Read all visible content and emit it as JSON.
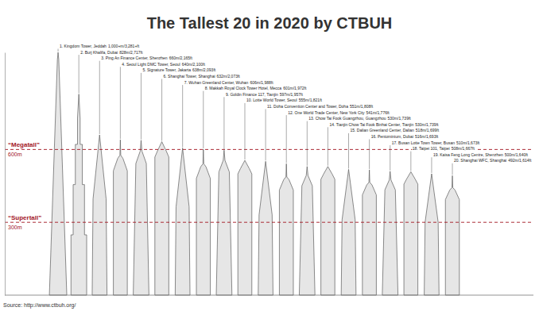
{
  "chart_data": {
    "type": "bar",
    "title": "The Tallest 20 in 2020 by CTBUH",
    "categories": [
      "1. Kingdom Tower, Jeddah",
      "2. Burj Khalifa, Dubai",
      "3. Ping An Finance Center, Shenzhen",
      "4. Seoul Light DMC Tower, Seoul",
      "5. Signature Tower, Jakarta",
      "6. Shanghai Tower, Shanghai",
      "7. Wuhan Greenland Center, Wuhan",
      "8. Makkah Royal Clock Tower Hotel, Mecca",
      "9. Goldin Finance 117, Tianjin",
      "10. Lotte World Tower, Seoul",
      "11. Doha Convention Center and Tower, Doha",
      "12. One World Trade Center, New York City",
      "13. Chow Tai Fook Guangzhou, Guangzhou",
      "14. Tianjin Chow Tai Fook Binhai Center, Tianjin",
      "15. Dalian Greenland Center, Dalian",
      "16. Pentominium, Dubai",
      "17. Busan Lotte Town Tower, Busan",
      "18. Taipei 101, Taipei",
      "19. Kaisa Feng Long Centre, Shenzhen",
      "20. Shanghai WFC, Shanghai"
    ],
    "values": [
      1000,
      828,
      660,
      640,
      638,
      632,
      606,
      601,
      597,
      555,
      551,
      541,
      530,
      530,
      518,
      516,
      510,
      508,
      500,
      492
    ],
    "value_labels": [
      "1,000+m/3,281+ft",
      "828m/2,717ft",
      "660m/2,165ft",
      "640m/2,100ft",
      "638m/2,093ft",
      "632m/2,073ft",
      "606m/1,988ft",
      "601m/1,972ft",
      "597m/1,957ft",
      "555m/1,821ft",
      "551m/1,808ft",
      "541m/1,776ft",
      "530m/1,739ft",
      "530m/1,739ft",
      "518m/1,699ft",
      "516m/1,693ft",
      "510m/1,673ft",
      "508m/1,667ft",
      "500m/1,640ft",
      "492m/1,614ft"
    ],
    "color": "#e6e6e6",
    "data_labels": true,
    "ylim": [
      0,
      1000
    ],
    "yticks": [
      {
        "value": 300,
        "label": "300m"
      },
      {
        "value": 600,
        "label": "600m"
      }
    ],
    "grid": true,
    "annotations": [
      {
        "text": "“Supertall”",
        "value": 300
      },
      {
        "text": "“Megatall”",
        "value": 600
      }
    ],
    "source": "Source: http://www.ctbuh.org/"
  }
}
